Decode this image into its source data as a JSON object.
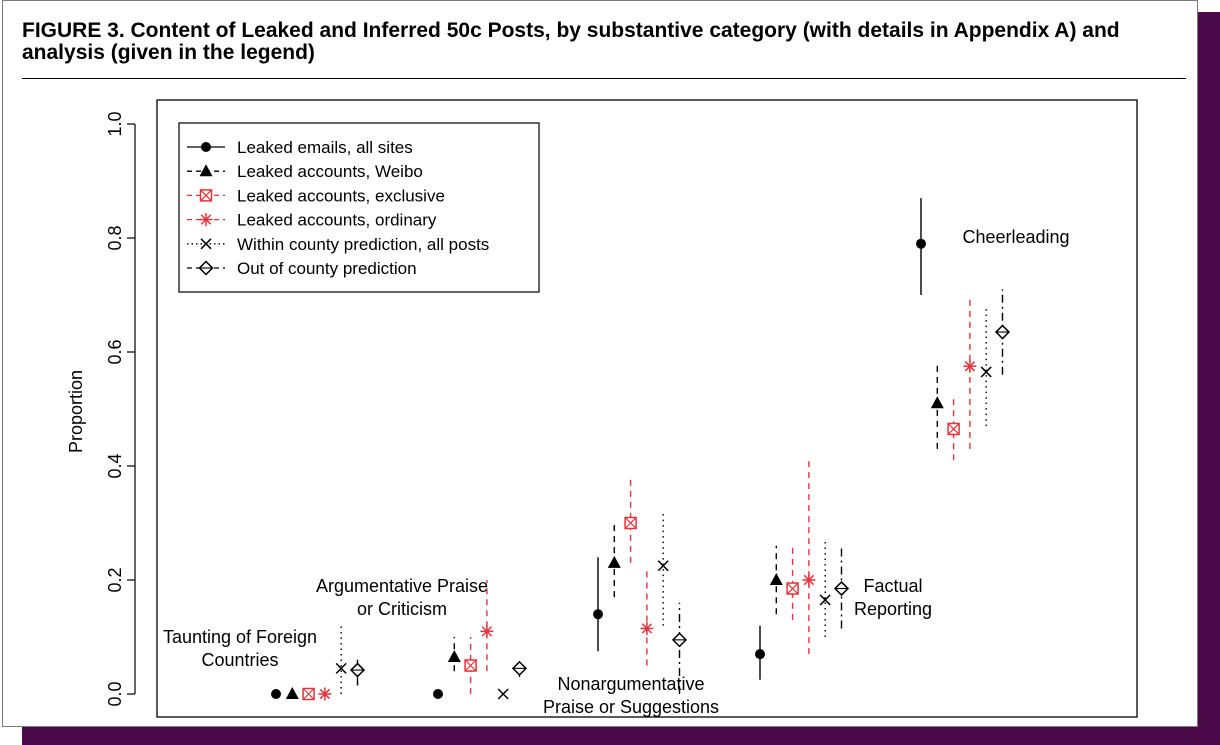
{
  "figure": {
    "title": "FIGURE 3.    Content of Leaked and Inferred 50c Posts, by substantive category (with details in Appendix A) and analysis (given in the legend)"
  },
  "colors": {
    "black": "#000000",
    "red": "#e8333a",
    "frame_shadow": "#4a0a4a"
  },
  "chart_data": {
    "type": "scatter",
    "title": "",
    "xlabel": "",
    "ylabel": "Proportion",
    "ylim": [
      0,
      1
    ],
    "yticks": [
      "0.0",
      "0.2",
      "0.4",
      "0.6",
      "0.8",
      "1.0"
    ],
    "grid": false,
    "legend_position": "top-left",
    "categories": [
      {
        "label": "Taunting of Foreign\nCountries"
      },
      {
        "label": "Argumentative Praise\nor Criticism"
      },
      {
        "label": "Nonargumentative\nPraise or Suggestions"
      },
      {
        "label": "Factual\nReporting"
      },
      {
        "label": "Cheerleading"
      }
    ],
    "series": [
      {
        "name": "Leaked emails, all sites",
        "marker": "dot",
        "line": "solid",
        "color": "#000000",
        "values": [
          0.0,
          0.0,
          0.14,
          0.07,
          0.79
        ],
        "lower": [
          null,
          null,
          0.075,
          0.025,
          0.7
        ],
        "upper": [
          null,
          null,
          0.24,
          0.12,
          0.87
        ]
      },
      {
        "name": "Leaked accounts, Weibo",
        "marker": "triangle",
        "line": "dashed",
        "color": "#000000",
        "values": [
          0.0,
          0.065,
          0.23,
          0.2,
          0.51
        ],
        "lower": [
          null,
          0.04,
          0.17,
          0.14,
          0.43
        ],
        "upper": [
          null,
          0.1,
          0.3,
          0.26,
          0.58
        ]
      },
      {
        "name": "Leaked accounts, exclusive",
        "marker": "boxx",
        "line": "dashed",
        "color": "#e8333a",
        "values": [
          0.0,
          0.05,
          0.3,
          0.185,
          0.465
        ],
        "lower": [
          null,
          0.0,
          0.23,
          0.13,
          0.41
        ],
        "upper": [
          null,
          0.1,
          0.38,
          0.26,
          0.52
        ]
      },
      {
        "name": "Leaked accounts, ordinary",
        "marker": "star",
        "line": "dashed",
        "color": "#e8333a",
        "values": [
          0.0,
          0.11,
          0.115,
          0.2,
          0.575
        ],
        "lower": [
          null,
          0.04,
          0.05,
          0.07,
          0.43
        ],
        "upper": [
          null,
          0.2,
          0.22,
          0.41,
          0.7
        ]
      },
      {
        "name": "Within county prediction, all posts",
        "marker": "x",
        "line": "dotted",
        "color": "#000000",
        "values": [
          0.045,
          0.0,
          0.225,
          0.165,
          0.565
        ],
        "lower": [
          0.0,
          null,
          0.12,
          0.1,
          0.47
        ],
        "upper": [
          0.12,
          null,
          0.32,
          0.27,
          0.68
        ]
      },
      {
        "name": "Out of county prediction",
        "marker": "diamond",
        "line": "dashdot",
        "color": "#000000",
        "values": [
          0.042,
          0.045,
          0.095,
          0.185,
          0.635
        ],
        "lower": [
          0.015,
          0.03,
          0.0,
          0.115,
          0.56
        ],
        "upper": [
          0.06,
          0.06,
          0.16,
          0.26,
          0.71
        ]
      }
    ]
  }
}
